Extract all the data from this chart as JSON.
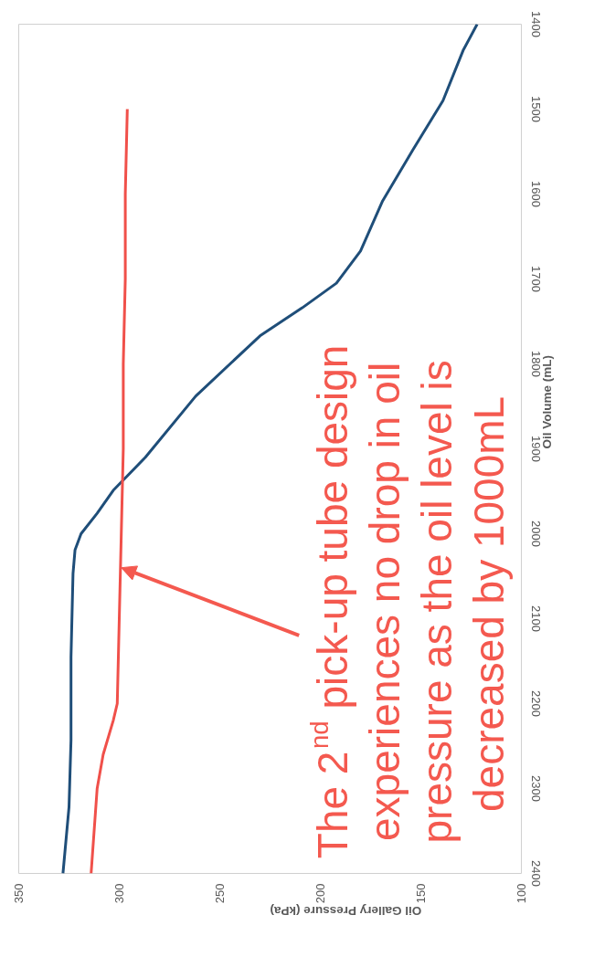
{
  "chart_data": {
    "type": "line",
    "xlabel": "Oil Gallery Pressure (kPa)",
    "ylabel": "Oil Volume (mL)",
    "xlim": [
      350,
      100
    ],
    "xticks": [
      350,
      300,
      250,
      200,
      150,
      100
    ],
    "ylim": [
      2400,
      1400
    ],
    "yticks": [
      2400,
      2300,
      2200,
      2100,
      2000,
      1900,
      1800,
      1700,
      1600,
      1500,
      1400
    ],
    "grid": false,
    "annotations": [
      {
        "text": "The 2$^{nd}$ pick-up tube design experiences no drop in oil pressure as the oil level is decreased by 1000mL",
        "x": 299,
        "y": 2040
      }
    ],
    "series": [
      {
        "color": "#1f4e79",
        "x": [
          328,
          325,
          324,
          324,
          323,
          322,
          319,
          311,
          303,
          287,
          262,
          230,
          209,
          192,
          180,
          169,
          154,
          139,
          129,
          122
        ],
        "values": [
          2400,
          2322,
          2243,
          2145,
          2047,
          2019,
          2000,
          1976,
          1949,
          1910,
          1838,
          1767,
          1734,
          1705,
          1667,
          1608,
          1548,
          1490,
          1431,
          1400
        ]
      },
      {
        "color": "#f0504a",
        "x": [
          314,
          311,
          308,
          303,
          301,
          300,
          299,
          298,
          298,
          297,
          297,
          296
        ],
        "values": [
          2400,
          2300,
          2260,
          2220,
          2200,
          2100,
          2000,
          1900,
          1800,
          1700,
          1600,
          1500
        ]
      }
    ]
  }
}
